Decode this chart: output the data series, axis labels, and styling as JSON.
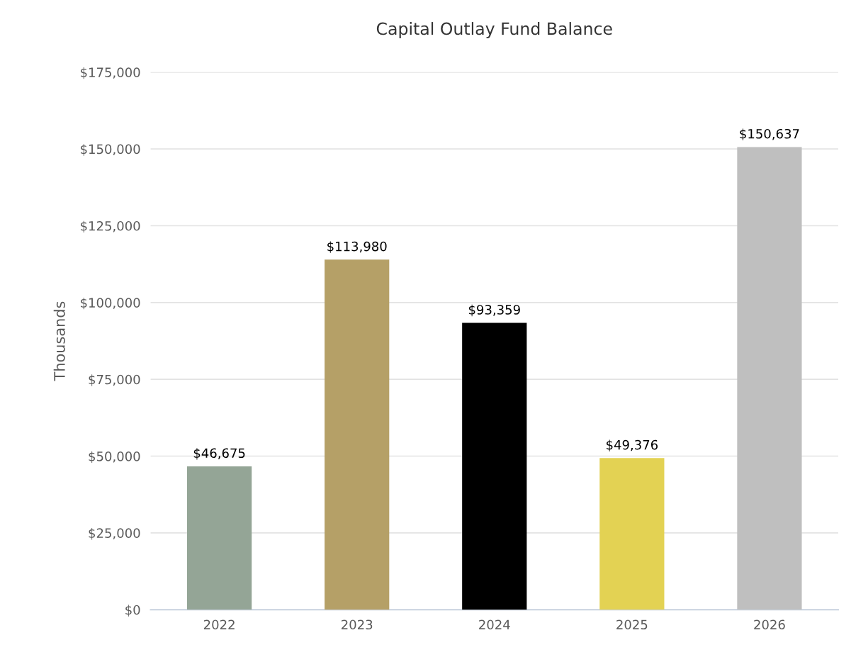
{
  "chart_data": {
    "type": "bar",
    "title": "Capital Outlay Fund Balance",
    "ylabel": "Thousands",
    "categories": [
      "2022",
      "2023",
      "2024",
      "2025",
      "2026"
    ],
    "values": [
      46675,
      113980,
      93359,
      49376,
      150637
    ],
    "colors": [
      "#94a596",
      "#b5a067",
      "#000000",
      "#e3d253",
      "#bfbfbf"
    ],
    "value_labels": [
      "$46,675",
      "$113,980",
      "$93,359",
      "$49,376",
      "$150,637"
    ],
    "ylim": [
      0,
      175000
    ],
    "yticks": [
      {
        "value": 0,
        "label": "$0"
      },
      {
        "value": 25000,
        "label": "$25,000"
      },
      {
        "value": 50000,
        "label": "$50,000"
      },
      {
        "value": 75000,
        "label": "$75,000"
      },
      {
        "value": 100000,
        "label": "$100,000"
      },
      {
        "value": 125000,
        "label": "$125,000"
      },
      {
        "value": 150000,
        "label": "$150,000"
      },
      {
        "value": 175000,
        "label": "$175,000"
      }
    ],
    "grid": "y",
    "legend": false
  }
}
